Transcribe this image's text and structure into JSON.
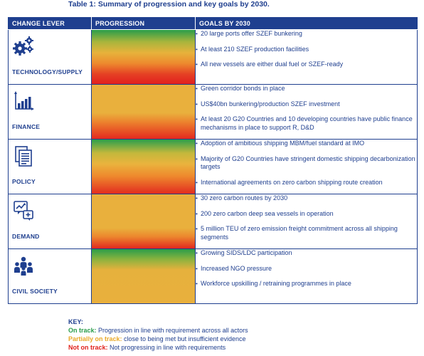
{
  "title": "Table 1: Summary of progression and key goals by 2030.",
  "headers": {
    "lever": "CHANGE LEVER",
    "progression": "PROGRESSION",
    "goals": "GOALS BY 2030"
  },
  "rows": [
    {
      "lever": "TECHNOLOGY/SUPPLY",
      "icon": "gears-icon",
      "goals": [
        "20 large ports offer SZEF bunkering",
        "At least 210 SZEF production facilities",
        "All new vessels are either dual fuel or SZEF-ready"
      ]
    },
    {
      "lever": "FINANCE",
      "icon": "bar-chart-icon",
      "goals": [
        "Green corridor bonds in place",
        "US$40bn bunkering/production SZEF investment",
        "At least 20 G20 Countries and 10 developing countries have public finance mechanisms in place to support R, D&D"
      ]
    },
    {
      "lever": "POLICY",
      "icon": "documents-icon",
      "goals": [
        "Adoption of ambitious shipping MBM/fuel standard at IMO",
        "Majority of G20 Countries have stringent domestic shipping decarbonization targets",
        "International agreements on zero carbon shipping route creation"
      ]
    },
    {
      "lever": "DEMAND",
      "icon": "trend-chat-icon",
      "goals": [
        "30 zero carbon routes by 2030",
        "200 zero carbon deep sea vessels in operation",
        "5 million TEU of zero emission freight commitment across all shipping segments"
      ]
    },
    {
      "lever": "CIVIL SOCIETY",
      "icon": "people-icon",
      "goals": [
        "Growing SIDS/LDC participation",
        "Increased NGO pressure",
        "Workforce upskilling / retraining programmes in place"
      ]
    }
  ],
  "key": {
    "title": "KEY:",
    "on_track_label": "On track:",
    "on_track_desc": " Progression in line with requirement across all actors",
    "partial_label": "Partially on track:",
    "partial_desc": " close to being met but insufficient evidence",
    "not_label": "Not on track:",
    "not_desc": " Not progressing in line with requirements"
  },
  "colors": {
    "brand_blue": "#1f3f8f",
    "on_track": "#2a9d4b",
    "partial": "#e9b03d",
    "not_on_track": "#e0221c"
  }
}
